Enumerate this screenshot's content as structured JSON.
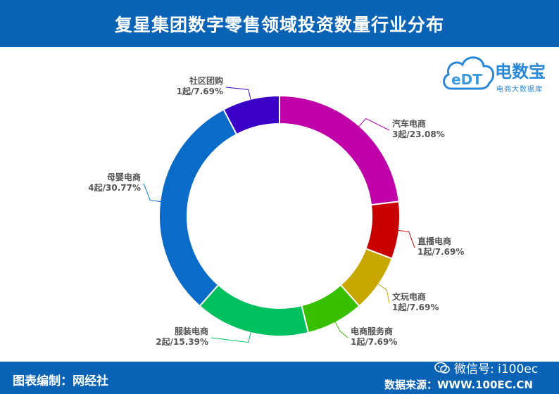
{
  "header": {
    "title": "复星集团数字零售领域投资数量行业分布"
  },
  "logo": {
    "mark": "eDT",
    "brand": "电数宝",
    "tagline": "电商大数据库"
  },
  "footer": {
    "credit": "图表编制：网经社",
    "wechat": "微信号: i100ec",
    "source": "数据来源：WWW.100EC.CN"
  },
  "colors": {
    "header_bg": "#0b63b6",
    "汽车电商": "#c000a8",
    "直播电商": "#c80000",
    "文玩电商": "#c8a800",
    "电商服务商": "#38c000",
    "服装电商": "#00c060",
    "母婴电商": "#0a6cc8",
    "社区团购": "#3a00c8"
  },
  "chart_data": {
    "type": "pie",
    "donut": true,
    "title": "复星集团数字零售领域投资数量行业分布",
    "unit": "起",
    "slices": [
      {
        "name": "汽车电商",
        "value": 3,
        "percent": "23.08%",
        "label": "3起/23.08%"
      },
      {
        "name": "直播电商",
        "value": 1,
        "percent": "7.69%",
        "label": "1起/7.69%"
      },
      {
        "name": "文玩电商",
        "value": 1,
        "percent": "7.69%",
        "label": "1起/7.69%"
      },
      {
        "name": "电商服务商",
        "value": 1,
        "percent": "7.69%",
        "label": "1起/7.69%"
      },
      {
        "name": "服装电商",
        "value": 2,
        "percent": "15.39%",
        "label": "2起/15.39%"
      },
      {
        "name": "母婴电商",
        "value": 4,
        "percent": "30.77%",
        "label": "4起/30.77%"
      },
      {
        "name": "社区团购",
        "value": 1,
        "percent": "7.69%",
        "label": "1起/7.69%"
      }
    ]
  }
}
